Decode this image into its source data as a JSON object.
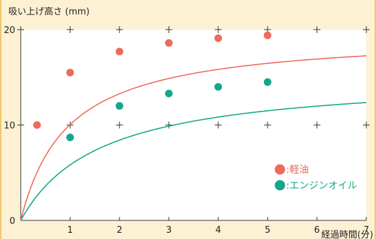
{
  "colors": {
    "background": "#fdf1d4",
    "plot_background": "#ffffff",
    "kerosene": "#ee6a5a",
    "engine_oil": "#14a88a",
    "grid_mark": "#333333"
  },
  "chart_data": {
    "type": "line",
    "title": "",
    "ylabel": "吸い上げ高さ (mm)",
    "xlabel": "経過時間(分)",
    "xlim": [
      0,
      7
    ],
    "ylim": [
      0,
      20
    ],
    "x_ticks": [
      "1",
      "2",
      "3",
      "4",
      "5",
      "6",
      "7"
    ],
    "y_ticks": [
      "0",
      "10",
      "20"
    ],
    "grid": "cross-markers",
    "legend_position": "bottom-right",
    "series": [
      {
        "name": "軽油",
        "legend_label": ":軽油",
        "color": "#ee6a5a",
        "points": [
          {
            "x": 0.33,
            "y": 10.0
          },
          {
            "x": 1.0,
            "y": 15.5
          },
          {
            "x": 2.0,
            "y": 17.7
          },
          {
            "x": 3.0,
            "y": 18.6
          },
          {
            "x": 4.0,
            "y": 19.1
          },
          {
            "x": 5.0,
            "y": 19.4
          }
        ],
        "curve_asymptote": 19.6,
        "curve_rate": 1.05
      },
      {
        "name": "エンジンオイル",
        "legend_label": ":エンジンオイル",
        "color": "#14a88a",
        "points": [
          {
            "x": 1.0,
            "y": 8.7
          },
          {
            "x": 2.0,
            "y": 12.0
          },
          {
            "x": 3.0,
            "y": 13.3
          },
          {
            "x": 4.0,
            "y": 14.0
          },
          {
            "x": 5.0,
            "y": 14.5
          }
        ],
        "curve_asymptote": 15.2,
        "curve_rate": 0.62
      }
    ]
  }
}
